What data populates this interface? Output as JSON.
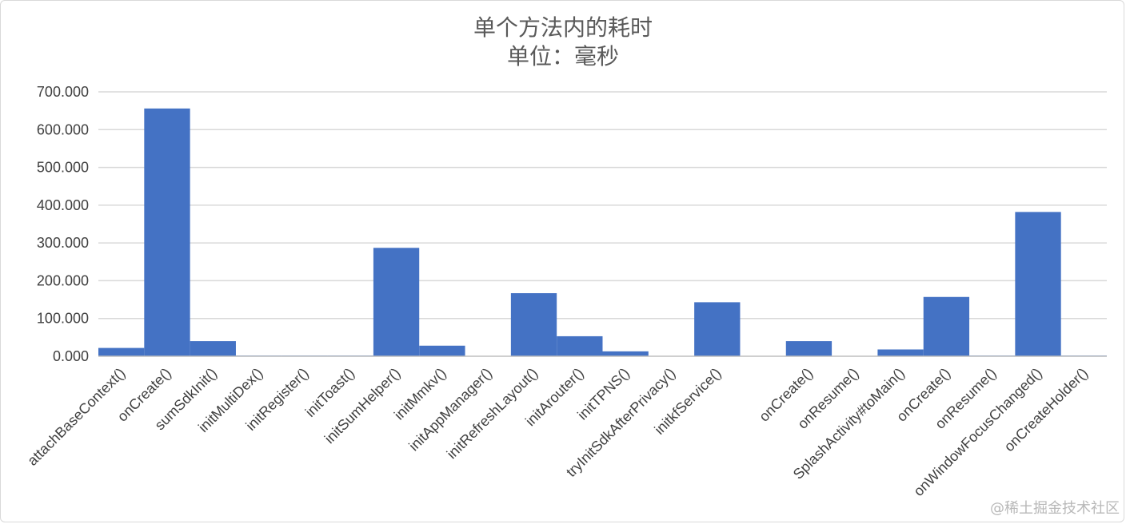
{
  "watermark": "@稀土掘金技术社区",
  "colors": {
    "bar": "#4472C4",
    "grid": "#D9D9D9",
    "text": "#404040",
    "title": "#595959"
  },
  "chart_data": {
    "type": "bar",
    "title": "单个方法内的耗时",
    "subtitle": "单位：毫秒",
    "xlabel": "",
    "ylabel": "",
    "ylim": [
      0,
      700
    ],
    "y_ticks": [
      "0.000",
      "100.000",
      "200.000",
      "300.000",
      "400.000",
      "500.000",
      "600.000",
      "700.000"
    ],
    "grid": true,
    "legend": "none",
    "categories": [
      "attachBaseContext()",
      "onCreate()",
      "sumSdkInit()",
      "initMultiDex()",
      "initRegister()",
      "initToast()",
      "initSumHelper()",
      "initMmkv()",
      "initAppManager()",
      "initRefreshLayout()",
      "initArouter()",
      "initTPNS()",
      "tryInitSdkAfterPrivacy()",
      "initkfService()",
      "",
      "onCreate()",
      "onResume()",
      "SplashActivity#toMain()",
      "onCreate()",
      "onResume()",
      "onWindowFocusChanged()",
      "onCreateHolder()"
    ],
    "values": [
      22,
      656,
      40,
      2,
      2,
      2,
      287,
      28,
      0,
      167,
      53,
      13,
      0,
      143,
      0,
      40,
      0,
      18,
      157,
      2,
      382,
      2
    ]
  }
}
